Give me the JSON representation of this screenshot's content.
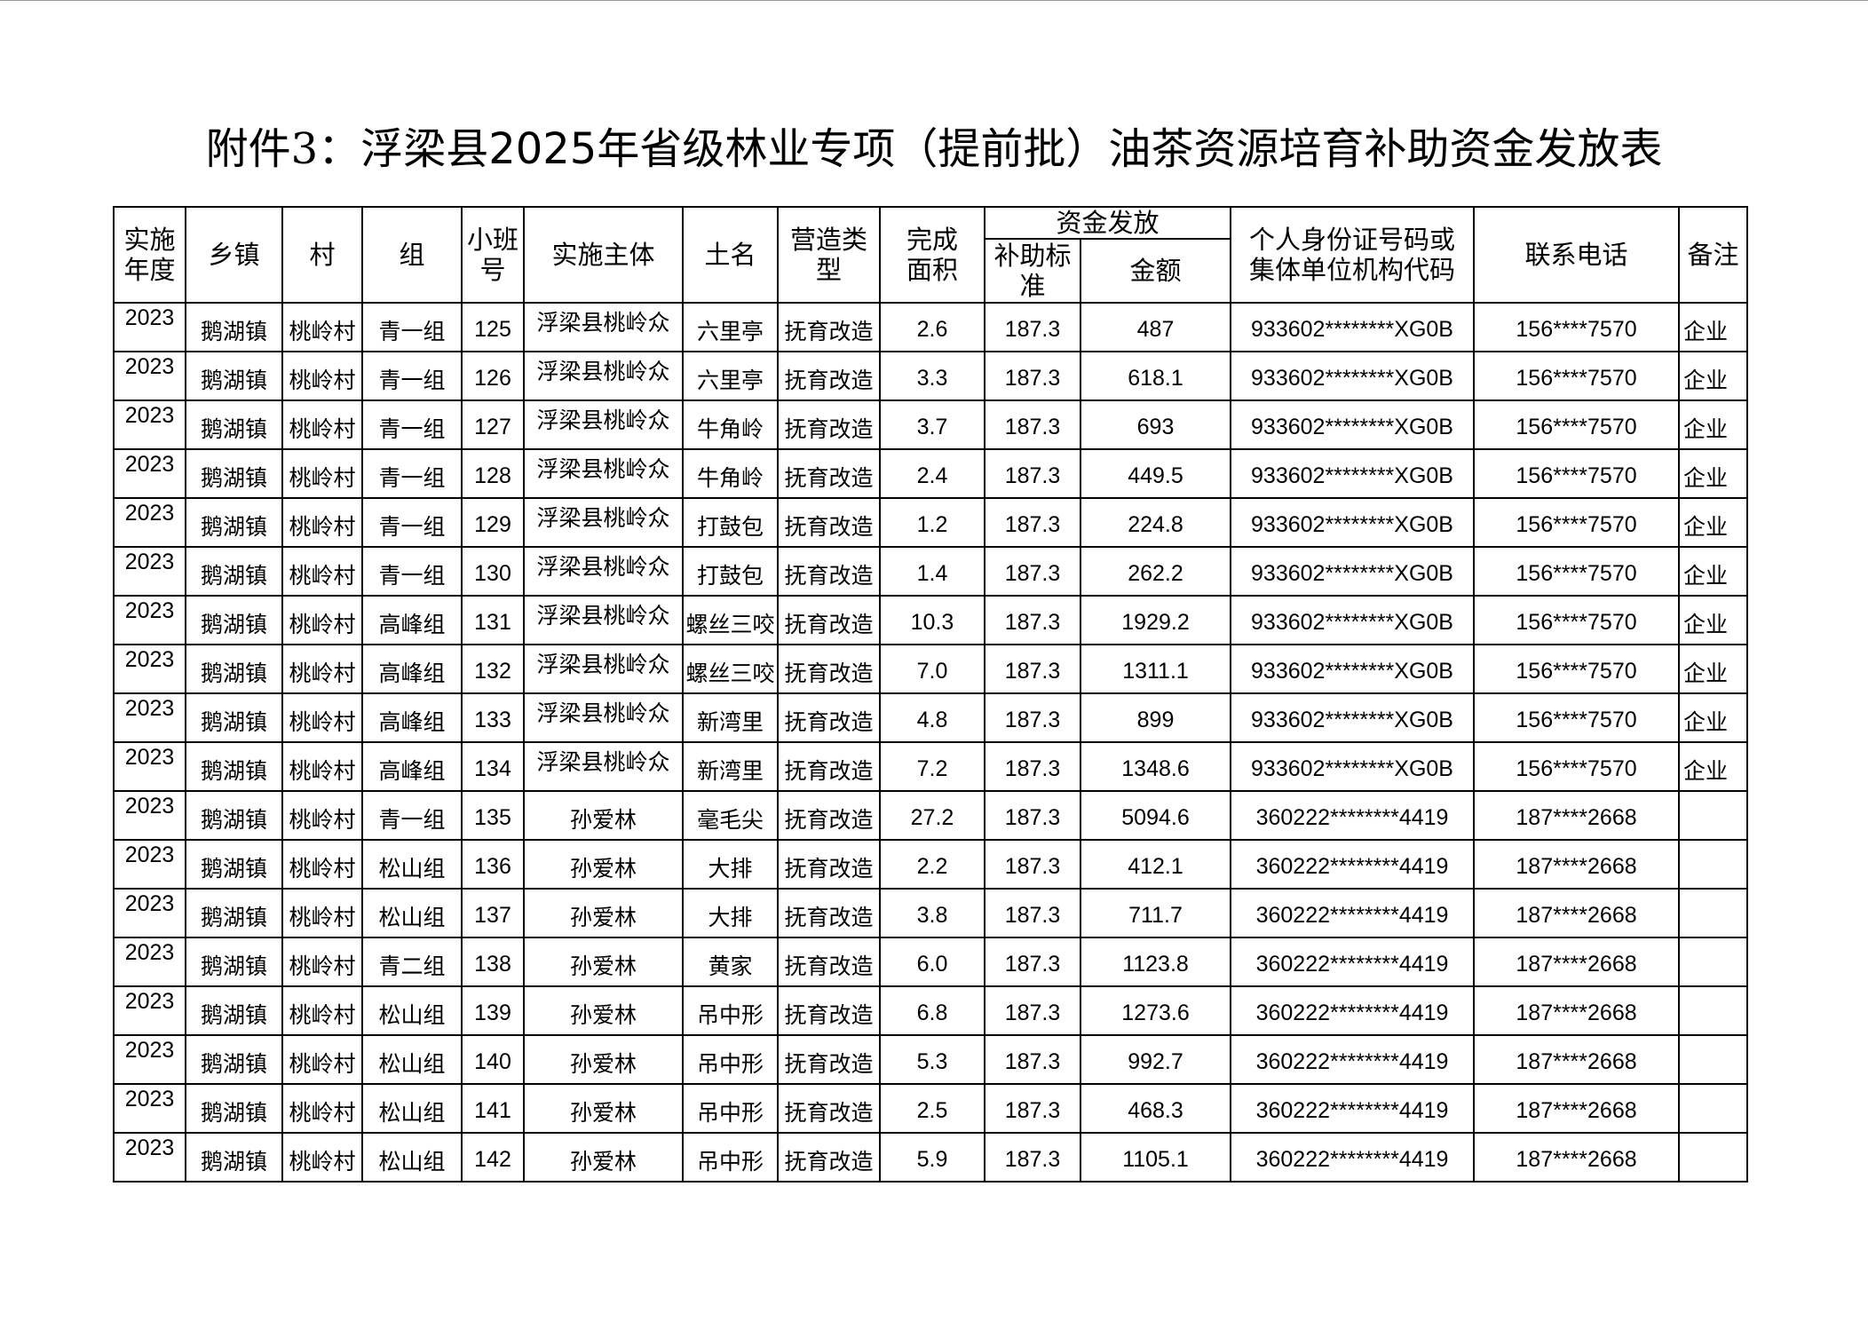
{
  "title": {
    "prefix": "附件3：",
    "text": "浮梁县2025年省级林业专项（提前批）油茶资源培育补助资金发放表"
  },
  "headers": {
    "year": "实施年度",
    "township": "乡镇",
    "village": "村",
    "group": "组",
    "plot_no": "小班号",
    "entity": "实施主体",
    "place_name": "土名",
    "type": "营造类型",
    "area": "完成面积",
    "funds": "资金发放",
    "standard": "补助标准",
    "amount": "金额",
    "id_code": "个人身份证号码或集体单位机构代码",
    "phone": "联系电话",
    "remark": "备注"
  },
  "rows": [
    {
      "year": "2023",
      "township": "鹅湖镇",
      "village": "桃岭村",
      "group": "青一组",
      "plot_no": "125",
      "entity": "浮梁县桃岭众",
      "place_name": "六里亭",
      "type": "抚育改造",
      "area": "2.6",
      "standard": "187.3",
      "amount": "487",
      "id_code": "933602********XG0B",
      "phone": "156****7570",
      "remark": "企业"
    },
    {
      "year": "2023",
      "township": "鹅湖镇",
      "village": "桃岭村",
      "group": "青一组",
      "plot_no": "126",
      "entity": "浮梁县桃岭众",
      "place_name": "六里亭",
      "type": "抚育改造",
      "area": "3.3",
      "standard": "187.3",
      "amount": "618.1",
      "id_code": "933602********XG0B",
      "phone": "156****7570",
      "remark": "企业"
    },
    {
      "year": "2023",
      "township": "鹅湖镇",
      "village": "桃岭村",
      "group": "青一组",
      "plot_no": "127",
      "entity": "浮梁县桃岭众",
      "place_name": "牛角岭",
      "type": "抚育改造",
      "area": "3.7",
      "standard": "187.3",
      "amount": "693",
      "id_code": "933602********XG0B",
      "phone": "156****7570",
      "remark": "企业"
    },
    {
      "year": "2023",
      "township": "鹅湖镇",
      "village": "桃岭村",
      "group": "青一组",
      "plot_no": "128",
      "entity": "浮梁县桃岭众",
      "place_name": "牛角岭",
      "type": "抚育改造",
      "area": "2.4",
      "standard": "187.3",
      "amount": "449.5",
      "id_code": "933602********XG0B",
      "phone": "156****7570",
      "remark": "企业"
    },
    {
      "year": "2023",
      "township": "鹅湖镇",
      "village": "桃岭村",
      "group": "青一组",
      "plot_no": "129",
      "entity": "浮梁县桃岭众",
      "place_name": "打鼓包",
      "type": "抚育改造",
      "area": "1.2",
      "standard": "187.3",
      "amount": "224.8",
      "id_code": "933602********XG0B",
      "phone": "156****7570",
      "remark": "企业"
    },
    {
      "year": "2023",
      "township": "鹅湖镇",
      "village": "桃岭村",
      "group": "青一组",
      "plot_no": "130",
      "entity": "浮梁县桃岭众",
      "place_name": "打鼓包",
      "type": "抚育改造",
      "area": "1.4",
      "standard": "187.3",
      "amount": "262.2",
      "id_code": "933602********XG0B",
      "phone": "156****7570",
      "remark": "企业"
    },
    {
      "year": "2023",
      "township": "鹅湖镇",
      "village": "桃岭村",
      "group": "高峰组",
      "plot_no": "131",
      "entity": "浮梁县桃岭众",
      "place_name": "螺丝三咬",
      "type": "抚育改造",
      "area": "10.3",
      "standard": "187.3",
      "amount": "1929.2",
      "id_code": "933602********XG0B",
      "phone": "156****7570",
      "remark": "企业"
    },
    {
      "year": "2023",
      "township": "鹅湖镇",
      "village": "桃岭村",
      "group": "高峰组",
      "plot_no": "132",
      "entity": "浮梁县桃岭众",
      "place_name": "螺丝三咬",
      "type": "抚育改造",
      "area": "7.0",
      "standard": "187.3",
      "amount": "1311.1",
      "id_code": "933602********XG0B",
      "phone": "156****7570",
      "remark": "企业"
    },
    {
      "year": "2023",
      "township": "鹅湖镇",
      "village": "桃岭村",
      "group": "高峰组",
      "plot_no": "133",
      "entity": "浮梁县桃岭众",
      "place_name": "新湾里",
      "type": "抚育改造",
      "area": "4.8",
      "standard": "187.3",
      "amount": "899",
      "id_code": "933602********XG0B",
      "phone": "156****7570",
      "remark": "企业"
    },
    {
      "year": "2023",
      "township": "鹅湖镇",
      "village": "桃岭村",
      "group": "高峰组",
      "plot_no": "134",
      "entity": "浮梁县桃岭众",
      "place_name": "新湾里",
      "type": "抚育改造",
      "area": "7.2",
      "standard": "187.3",
      "amount": "1348.6",
      "id_code": "933602********XG0B",
      "phone": "156****7570",
      "remark": "企业"
    },
    {
      "year": "2023",
      "township": "鹅湖镇",
      "village": "桃岭村",
      "group": "青一组",
      "plot_no": "135",
      "entity": "孙爱林",
      "place_name": "毫毛尖",
      "type": "抚育改造",
      "area": "27.2",
      "standard": "187.3",
      "amount": "5094.6",
      "id_code": "360222********4419",
      "phone": "187****2668",
      "remark": ""
    },
    {
      "year": "2023",
      "township": "鹅湖镇",
      "village": "桃岭村",
      "group": "松山组",
      "plot_no": "136",
      "entity": "孙爱林",
      "place_name": "大排",
      "type": "抚育改造",
      "area": "2.2",
      "standard": "187.3",
      "amount": "412.1",
      "id_code": "360222********4419",
      "phone": "187****2668",
      "remark": ""
    },
    {
      "year": "2023",
      "township": "鹅湖镇",
      "village": "桃岭村",
      "group": "松山组",
      "plot_no": "137",
      "entity": "孙爱林",
      "place_name": "大排",
      "type": "抚育改造",
      "area": "3.8",
      "standard": "187.3",
      "amount": "711.7",
      "id_code": "360222********4419",
      "phone": "187****2668",
      "remark": ""
    },
    {
      "year": "2023",
      "township": "鹅湖镇",
      "village": "桃岭村",
      "group": "青二组",
      "plot_no": "138",
      "entity": "孙爱林",
      "place_name": "黄家",
      "type": "抚育改造",
      "area": "6.0",
      "standard": "187.3",
      "amount": "1123.8",
      "id_code": "360222********4419",
      "phone": "187****2668",
      "remark": ""
    },
    {
      "year": "2023",
      "township": "鹅湖镇",
      "village": "桃岭村",
      "group": "松山组",
      "plot_no": "139",
      "entity": "孙爱林",
      "place_name": "吊中形",
      "type": "抚育改造",
      "area": "6.8",
      "standard": "187.3",
      "amount": "1273.6",
      "id_code": "360222********4419",
      "phone": "187****2668",
      "remark": ""
    },
    {
      "year": "2023",
      "township": "鹅湖镇",
      "village": "桃岭村",
      "group": "松山组",
      "plot_no": "140",
      "entity": "孙爱林",
      "place_name": "吊中形",
      "type": "抚育改造",
      "area": "5.3",
      "standard": "187.3",
      "amount": "992.7",
      "id_code": "360222********4419",
      "phone": "187****2668",
      "remark": ""
    },
    {
      "year": "2023",
      "township": "鹅湖镇",
      "village": "桃岭村",
      "group": "松山组",
      "plot_no": "141",
      "entity": "孙爱林",
      "place_name": "吊中形",
      "type": "抚育改造",
      "area": "2.5",
      "standard": "187.3",
      "amount": "468.3",
      "id_code": "360222********4419",
      "phone": "187****2668",
      "remark": ""
    },
    {
      "year": "2023",
      "township": "鹅湖镇",
      "village": "桃岭村",
      "group": "松山组",
      "plot_no": "142",
      "entity": "孙爱林",
      "place_name": "吊中形",
      "type": "抚育改造",
      "area": "5.9",
      "standard": "187.3",
      "amount": "1105.1",
      "id_code": "360222********4419",
      "phone": "187****2668",
      "remark": ""
    }
  ]
}
